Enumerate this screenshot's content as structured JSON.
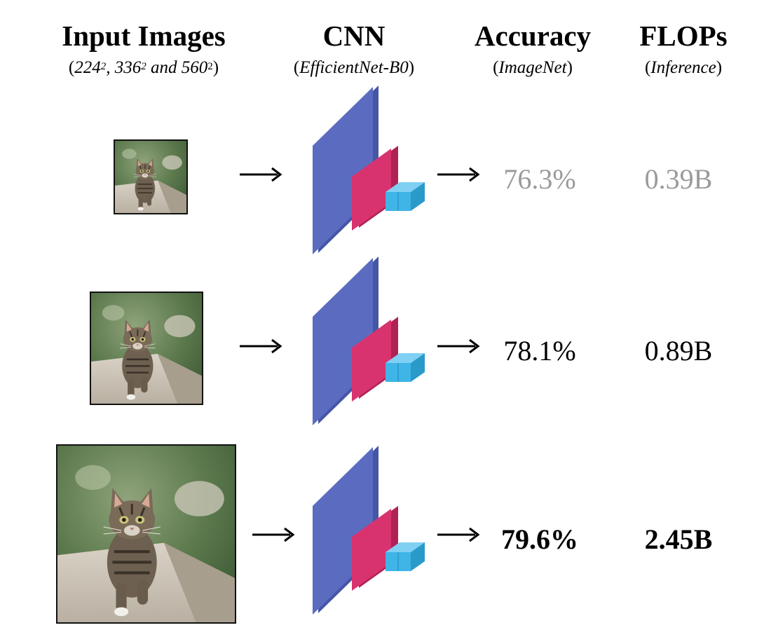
{
  "headers": {
    "input": {
      "title": "Input Images",
      "sub_open": "(",
      "res1": "224",
      "res2": "336",
      "res3": "560",
      "exp": "2",
      "sep1": ", ",
      "sep2": " and ",
      "sub_close": ")"
    },
    "cnn": {
      "title": "CNN",
      "sub_open": "(",
      "sub_text": "EfficientNet-B0",
      "sub_close": ")"
    },
    "accuracy": {
      "title": "Accuracy",
      "sub_open": "(",
      "sub_text": "ImageNet",
      "sub_close": ")"
    },
    "flops": {
      "title": "FLOPs",
      "sub_open": "(",
      "sub_text": "Inference",
      "sub_close": ")"
    }
  },
  "rows": [
    {
      "accuracy": "76.3%",
      "flops": "0.39B",
      "emphasis": "faded"
    },
    {
      "accuracy": "78.1%",
      "flops": "0.89B",
      "emphasis": "normal"
    },
    {
      "accuracy": "79.6%",
      "flops": "2.45B",
      "emphasis": "bold"
    }
  ],
  "colors": {
    "cnn_blue": "#5b6cc0",
    "cnn_pink": "#d8336e",
    "cnn_cyan": "#3fb4e6",
    "faded_text": "#9a9a9a"
  }
}
